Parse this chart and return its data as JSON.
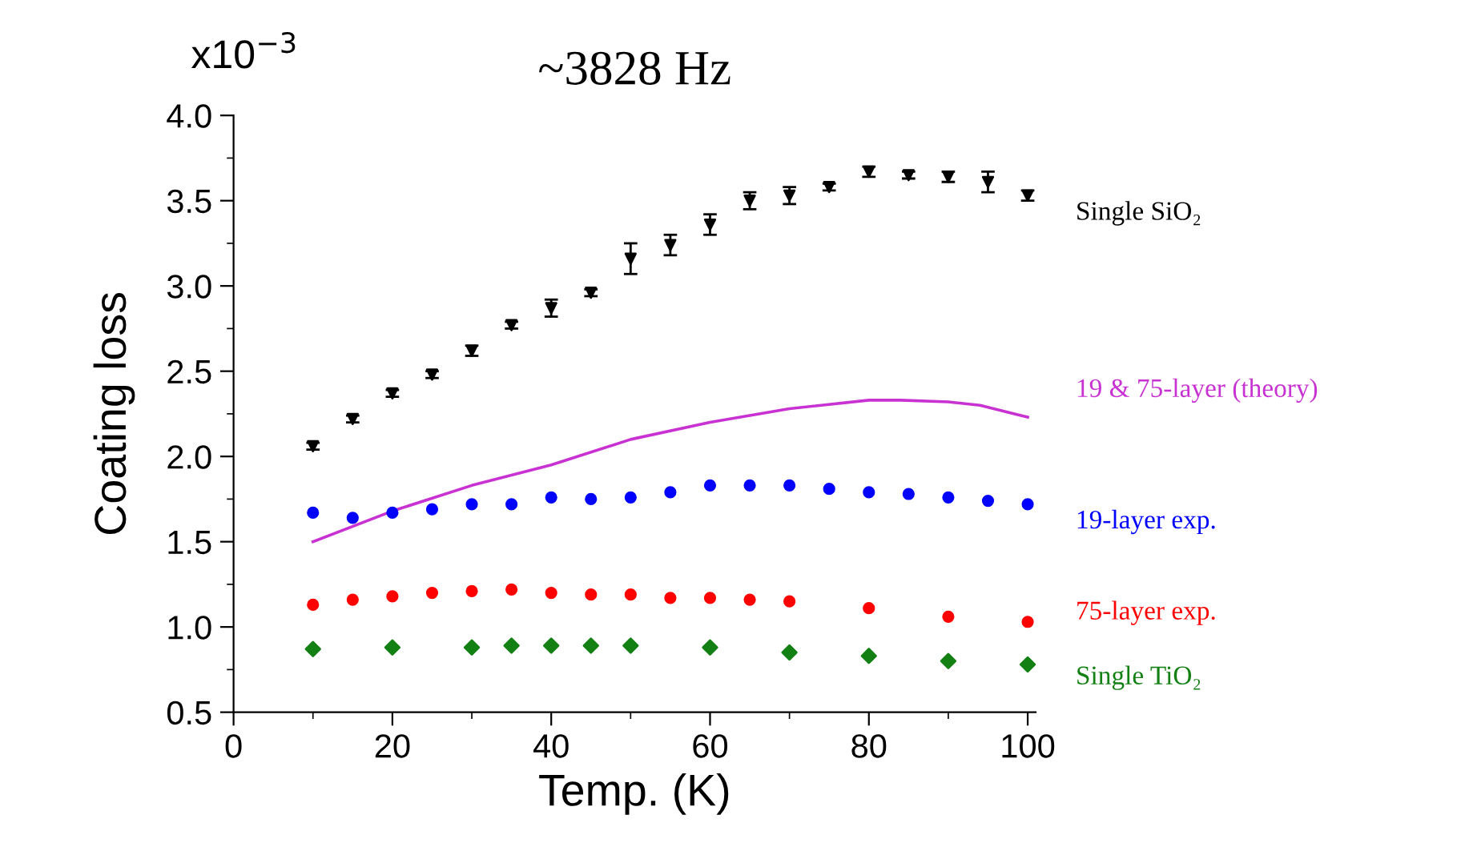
{
  "chart_data": {
    "type": "scatter",
    "title": "~3828 Hz",
    "xlabel": "Temp. (K)",
    "ylabel": "Coating loss",
    "annotations": [
      "x10$^{−3}$"
    ],
    "xlim": [
      0,
      101
    ],
    "xticks": [
      0,
      20,
      40,
      60,
      80,
      100
    ],
    "ylim": [
      0.5,
      4.0
    ],
    "yticks": [
      0.5,
      {
        "value": 1,
        "label": "1.0"
      },
      1.5,
      {
        "value": 2,
        "label": "2.0"
      },
      2.5,
      {
        "value": 3,
        "label": "3.0"
      },
      3.5,
      {
        "value": 4,
        "label": "4.0"
      }
    ],
    "grid": false,
    "legend": false,
    "series": [
      {
        "name": "Single SiO₂",
        "color": "#000000",
        "marker": "triangle",
        "x": [
          10,
          15,
          20,
          25,
          30,
          35,
          40,
          45,
          50,
          55,
          60,
          65,
          70,
          75,
          80,
          85,
          90,
          95,
          100
        ],
        "values": [
          2.06,
          2.22,
          2.37,
          2.48,
          2.62,
          2.77,
          2.87,
          2.96,
          3.16,
          3.24,
          3.36,
          3.5,
          3.53,
          3.58,
          3.67,
          3.65,
          3.64,
          3.61,
          3.53
        ],
        "errors": [
          0.02,
          0.02,
          0.02,
          0.02,
          0.03,
          0.02,
          0.05,
          0.02,
          0.09,
          0.06,
          0.06,
          0.05,
          0.05,
          0.02,
          0.03,
          0.02,
          0.03,
          0.06,
          0.03
        ]
      },
      {
        "name": "19 & 75-layer (theory)",
        "type": "line",
        "color": "#c832d2",
        "x": [
          10,
          20,
          30,
          40,
          50,
          60,
          70,
          80,
          84,
          90,
          94,
          100
        ],
        "values": [
          1.5,
          1.68,
          1.83,
          1.95,
          2.1,
          2.2,
          2.28,
          2.33,
          2.33,
          2.32,
          2.3,
          2.23
        ]
      },
      {
        "name": "19-layer exp.",
        "color": "#0000ff",
        "marker": "circle",
        "x": [
          10,
          15,
          20,
          25,
          30,
          35,
          40,
          45,
          50,
          55,
          60,
          65,
          70,
          75,
          80,
          85,
          90,
          95,
          100
        ],
        "values": [
          1.67,
          1.64,
          1.67,
          1.69,
          1.72,
          1.72,
          1.76,
          1.75,
          1.76,
          1.79,
          1.83,
          1.83,
          1.83,
          1.81,
          1.79,
          1.78,
          1.76,
          1.74,
          1.72
        ]
      },
      {
        "name": "75-layer exp.",
        "color": "#ff0000",
        "marker": "circle",
        "x": [
          10,
          15,
          20,
          25,
          30,
          35,
          40,
          45,
          50,
          55,
          60,
          65,
          70,
          80,
          90,
          100
        ],
        "values": [
          1.13,
          1.16,
          1.18,
          1.2,
          1.21,
          1.22,
          1.2,
          1.19,
          1.19,
          1.17,
          1.17,
          1.16,
          1.15,
          1.11,
          1.06,
          1.03
        ]
      },
      {
        "name": "Single TiO₂",
        "color": "#138013",
        "marker": "diamond",
        "x": [
          10,
          20,
          30,
          35,
          40,
          45,
          50,
          60,
          70,
          80,
          90,
          100
        ],
        "values": [
          0.87,
          0.88,
          0.88,
          0.89,
          0.89,
          0.89,
          0.89,
          0.88,
          0.85,
          0.83,
          0.8,
          0.78
        ]
      }
    ]
  }
}
